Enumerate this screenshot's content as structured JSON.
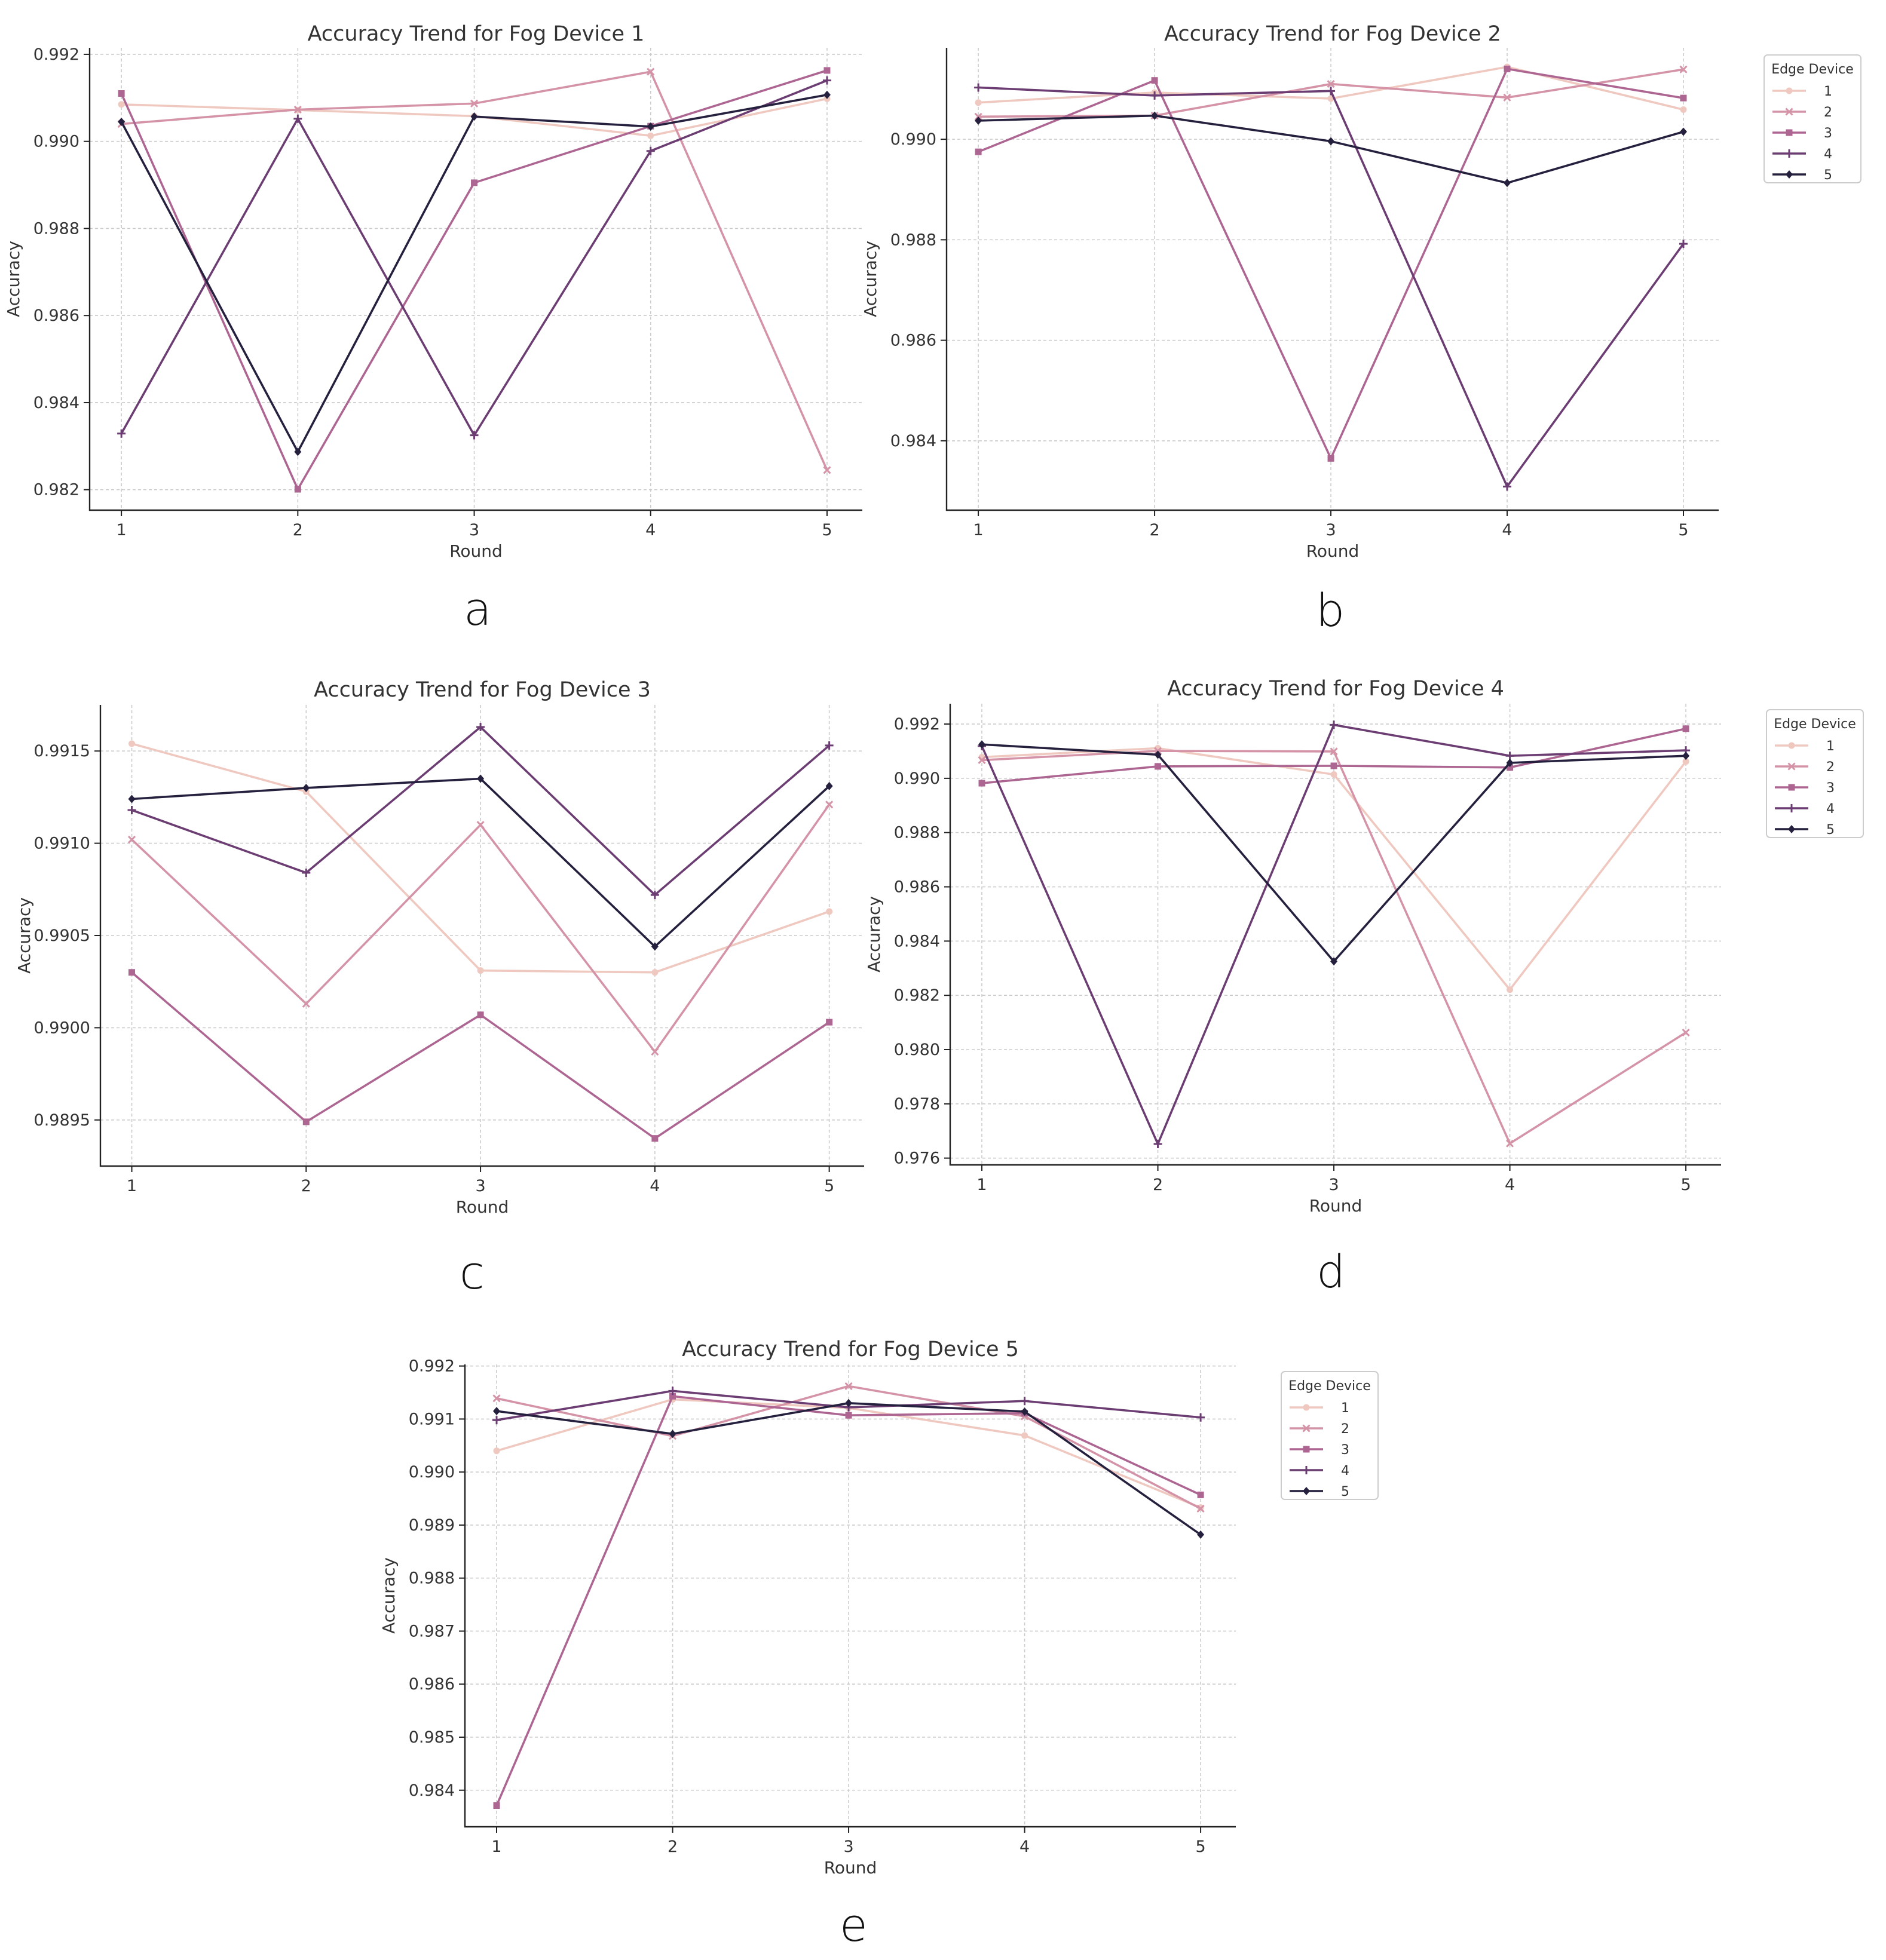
{
  "colors": {
    "series": [
      "#efc8c0",
      "#d493a7",
      "#ad6592",
      "#6b3d72",
      "#24203d"
    ],
    "grid": "#cccccc",
    "axis": "#222222",
    "text": "#333333"
  },
  "chart_data": [
    {
      "type": "line",
      "panel_letter": "a",
      "title": "Accuracy Trend for Fog Device 1",
      "xlabel": "Round",
      "ylabel": "Accuracy",
      "x": [
        1,
        2,
        3,
        4,
        5
      ],
      "xlim": [
        0.82,
        5.2
      ],
      "ylim": [
        0.98153,
        0.99215
      ],
      "yticks": [
        0.982,
        0.984,
        0.986,
        0.988,
        0.99,
        0.992
      ],
      "ytick_labels": [
        "0.982",
        "0.984",
        "0.986",
        "0.988",
        "0.990",
        "0.992"
      ],
      "grid": true,
      "legend": null,
      "series": [
        {
          "name": "1",
          "marker": "circle",
          "values": [
            0.99085,
            0.99072,
            0.99058,
            0.99013,
            0.99098
          ]
        },
        {
          "name": "2",
          "marker": "x",
          "values": [
            0.9904,
            0.99073,
            0.99087,
            0.9916,
            0.98245
          ]
        },
        {
          "name": "3",
          "marker": "square",
          "values": [
            0.9911,
            0.98201,
            0.98905,
            0.99035,
            0.99163
          ]
        },
        {
          "name": "4",
          "marker": "plus",
          "values": [
            0.98329,
            0.99052,
            0.98325,
            0.98978,
            0.9914
          ]
        },
        {
          "name": "5",
          "marker": "diamond",
          "values": [
            0.99045,
            0.98287,
            0.99057,
            0.99034,
            0.99107
          ]
        }
      ]
    },
    {
      "type": "line",
      "panel_letter": "b",
      "title": "Accuracy Trend for Fog Device 2",
      "xlabel": "Round",
      "ylabel": "Accuracy",
      "x": [
        1,
        2,
        3,
        4,
        5
      ],
      "xlim": [
        0.82,
        5.2
      ],
      "ylim": [
        0.98262,
        0.99182
      ],
      "yticks": [
        0.984,
        0.986,
        0.988,
        0.99
      ],
      "ytick_labels": [
        "0.984",
        "0.986",
        "0.988",
        "0.990"
      ],
      "grid": true,
      "legend": {
        "title": "Edge Device",
        "entries": [
          "1",
          "2",
          "3",
          "4",
          "5"
        ],
        "placement": "outside-right-top"
      },
      "series": [
        {
          "name": "1",
          "marker": "circle",
          "values": [
            0.99073,
            0.99093,
            0.99081,
            0.99144,
            0.99059
          ]
        },
        {
          "name": "2",
          "marker": "x",
          "values": [
            0.99045,
            0.99047,
            0.9911,
            0.99083,
            0.99139
          ]
        },
        {
          "name": "3",
          "marker": "square",
          "values": [
            0.98975,
            0.99117,
            0.98365,
            0.9914,
            0.99082
          ]
        },
        {
          "name": "4",
          "marker": "plus",
          "values": [
            0.99103,
            0.99087,
            0.99096,
            0.98309,
            0.98792
          ]
        },
        {
          "name": "5",
          "marker": "diamond",
          "values": [
            0.99037,
            0.99047,
            0.98996,
            0.98913,
            0.99015
          ]
        }
      ]
    },
    {
      "type": "line",
      "panel_letter": "c",
      "title": "Accuracy Trend for Fog Device 3",
      "xlabel": "Round",
      "ylabel": "Accuracy",
      "x": [
        1,
        2,
        3,
        4,
        5
      ],
      "xlim": [
        0.82,
        5.2
      ],
      "ylim": [
        0.98925,
        0.99175
      ],
      "yticks": [
        0.9895,
        0.99,
        0.9905,
        0.991,
        0.9915
      ],
      "ytick_labels": [
        "0.9895",
        "0.9900",
        "0.9905",
        "0.9910",
        "0.9915"
      ],
      "grid": true,
      "legend": null,
      "series": [
        {
          "name": "1",
          "marker": "circle",
          "values": [
            0.99154,
            0.99128,
            0.99031,
            0.9903,
            0.99063
          ]
        },
        {
          "name": "2",
          "marker": "x",
          "values": [
            0.99102,
            0.99013,
            0.9911,
            0.98987,
            0.99121
          ]
        },
        {
          "name": "3",
          "marker": "square",
          "values": [
            0.9903,
            0.98949,
            0.99007,
            0.9894,
            0.99003
          ]
        },
        {
          "name": "4",
          "marker": "plus",
          "values": [
            0.99118,
            0.99084,
            0.99163,
            0.99072,
            0.99153
          ]
        },
        {
          "name": "5",
          "marker": "diamond",
          "values": [
            0.99124,
            0.9913,
            0.99135,
            0.99044,
            0.99131
          ]
        }
      ]
    },
    {
      "type": "line",
      "panel_letter": "d",
      "title": "Accuracy Trend for Fog Device 4",
      "xlabel": "Round",
      "ylabel": "Accuracy",
      "x": [
        1,
        2,
        3,
        4,
        5
      ],
      "xlim": [
        0.82,
        5.2
      ],
      "ylim": [
        0.97575,
        0.99275
      ],
      "yticks": [
        0.976,
        0.978,
        0.98,
        0.982,
        0.984,
        0.986,
        0.988,
        0.99,
        0.992
      ],
      "ytick_labels": [
        "0.976",
        "0.978",
        "0.980",
        "0.982",
        "0.984",
        "0.986",
        "0.988",
        "0.990",
        "0.992"
      ],
      "grid": true,
      "legend": {
        "title": "Edge Device",
        "entries": [
          "1",
          "2",
          "3",
          "4",
          "5"
        ],
        "placement": "outside-right-top"
      },
      "series": [
        {
          "name": "1",
          "marker": "circle",
          "values": [
            0.99078,
            0.99111,
            0.99014,
            0.98221,
            0.99062
          ]
        },
        {
          "name": "2",
          "marker": "x",
          "values": [
            0.99067,
            0.99101,
            0.99099,
            0.97654,
            0.98063
          ]
        },
        {
          "name": "3",
          "marker": "square",
          "values": [
            0.98982,
            0.99044,
            0.99046,
            0.9904,
            0.99183
          ]
        },
        {
          "name": "4",
          "marker": "plus",
          "values": [
            0.99119,
            0.97652,
            0.99197,
            0.99083,
            0.99103
          ]
        },
        {
          "name": "5",
          "marker": "diamond",
          "values": [
            0.99125,
            0.99087,
            0.98325,
            0.99057,
            0.99083
          ]
        }
      ]
    },
    {
      "type": "line",
      "panel_letter": "e",
      "title": "Accuracy Trend for Fog Device 5",
      "xlabel": "Round",
      "ylabel": "Accuracy",
      "x": [
        1,
        2,
        3,
        4,
        5
      ],
      "xlim": [
        0.82,
        5.2
      ],
      "ylim": [
        0.98331,
        0.99203
      ],
      "yticks": [
        0.984,
        0.985,
        0.986,
        0.987,
        0.988,
        0.989,
        0.99,
        0.991,
        0.992
      ],
      "ytick_labels": [
        "0.984",
        "0.985",
        "0.986",
        "0.987",
        "0.988",
        "0.989",
        "0.990",
        "0.991",
        "0.992"
      ],
      "grid": true,
      "legend": {
        "title": "Edge Device",
        "entries": [
          "1",
          "2",
          "3",
          "4",
          "5"
        ],
        "placement": "outside-right-top"
      },
      "series": [
        {
          "name": "1",
          "marker": "circle",
          "values": [
            0.9904,
            0.99137,
            0.99121,
            0.99069,
            0.98933
          ]
        },
        {
          "name": "2",
          "marker": "x",
          "values": [
            0.99139,
            0.99068,
            0.99162,
            0.99105,
            0.98931
          ]
        },
        {
          "name": "3",
          "marker": "square",
          "values": [
            0.98371,
            0.99143,
            0.99107,
            0.99111,
            0.98957
          ]
        },
        {
          "name": "4",
          "marker": "plus",
          "values": [
            0.99098,
            0.99153,
            0.99122,
            0.99134,
            0.99103
          ]
        },
        {
          "name": "5",
          "marker": "diamond",
          "values": [
            0.99115,
            0.99072,
            0.9913,
            0.99114,
            0.98882
          ]
        }
      ]
    }
  ]
}
